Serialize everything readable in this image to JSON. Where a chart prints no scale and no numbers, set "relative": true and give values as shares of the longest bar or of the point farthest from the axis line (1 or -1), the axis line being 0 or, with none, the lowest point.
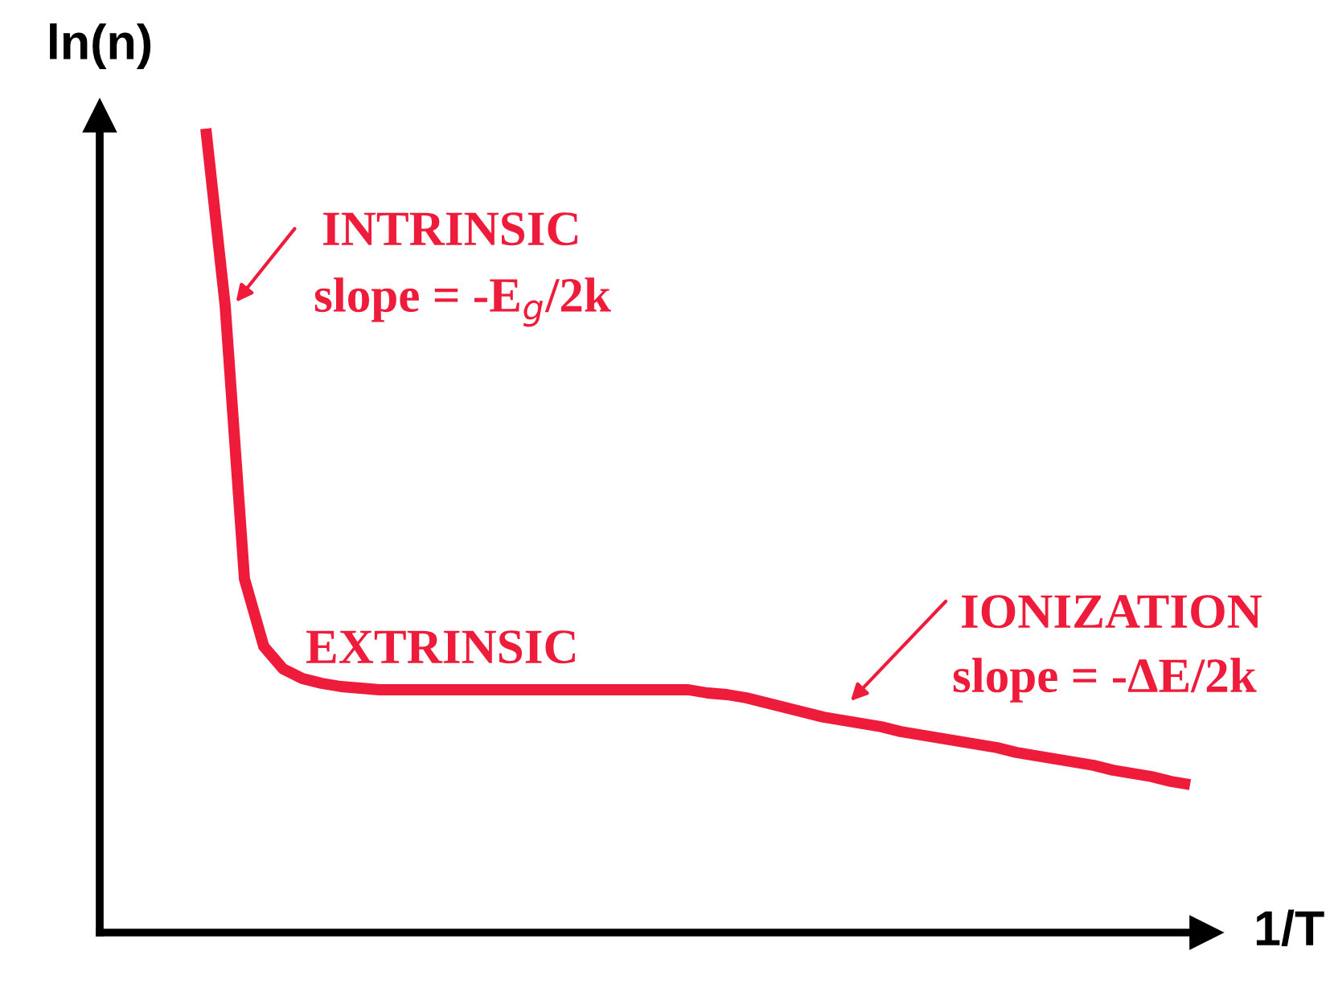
{
  "chart_data": {
    "type": "line",
    "relative": true,
    "xlabel": "1/T",
    "ylabel": "ln(n)",
    "categories": [
      null,
      null,
      null,
      null,
      null,
      null,
      null,
      null,
      null,
      null,
      null,
      null,
      null,
      null,
      null,
      null,
      null,
      null,
      null,
      null,
      null,
      null,
      null,
      null,
      null,
      null,
      null,
      null,
      null,
      null,
      null,
      null,
      null,
      null,
      null,
      null,
      null,
      null,
      null,
      null,
      null,
      null,
      null,
      null,
      null,
      null,
      null,
      null,
      null,
      null,
      null,
      null
    ],
    "series": [
      {
        "color": "#ee1c3a",
        "values": [
          1.0,
          0.78,
          0.44,
          0.356,
          0.328,
          0.316,
          0.31,
          0.306,
          0.304,
          0.302,
          0.302,
          0.302,
          0.302,
          0.302,
          0.302,
          0.302,
          0.302,
          0.302,
          0.302,
          0.302,
          0.302,
          0.302,
          0.302,
          0.302,
          0.302,
          0.302,
          0.298,
          0.296,
          0.292,
          0.286,
          0.28,
          0.274,
          0.268,
          0.264,
          0.26,
          0.256,
          0.25,
          0.246,
          0.242,
          0.238,
          0.234,
          0.23,
          0.224,
          0.22,
          0.216,
          0.212,
          0.208,
          0.202,
          0.198,
          0.194,
          0.188,
          0.184
        ]
      }
    ],
    "annotations": [
      "INTRINSIC",
      "slope = -E$_{g}$/2k",
      "EXTRINSIC",
      "IONIZATION",
      "slope = -ΔE/2k"
    ],
    "grid": false,
    "legend": false,
    "marker": "none",
    "line_style": "solid"
  }
}
